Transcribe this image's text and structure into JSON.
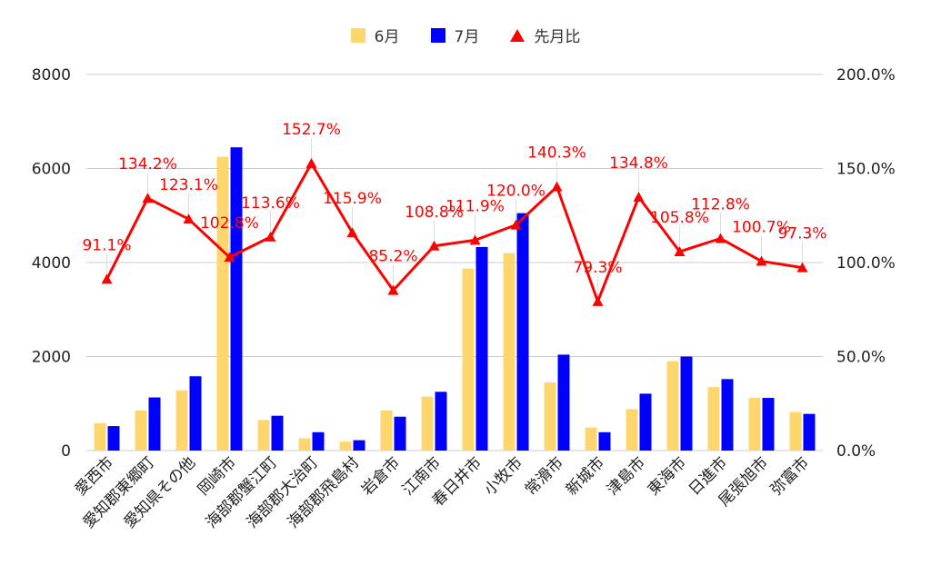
{
  "chart_data": {
    "type": "bar",
    "categories": [
      "愛西市",
      "愛知郡東郷町",
      "愛知県その他",
      "岡崎市",
      "海部郡蟹江町",
      "海部郡大治町",
      "海部郡飛島村",
      "岩倉市",
      "江南市",
      "春日井市",
      "小牧市",
      "常滑市",
      "新城市",
      "津島市",
      "東海市",
      "日進市",
      "尾張旭市",
      "弥富市"
    ],
    "series": [
      {
        "name": "6月",
        "color": "#FDD76E",
        "axis": "left",
        "values": [
          580,
          850,
          1280,
          6250,
          650,
          260,
          190,
          850,
          1150,
          3870,
          4200,
          1450,
          490,
          880,
          1900,
          1350,
          1120,
          820
        ]
      },
      {
        "name": "7月",
        "color": "#0000FF",
        "axis": "left",
        "values": [
          520,
          1130,
          1580,
          6450,
          740,
          390,
          220,
          720,
          1250,
          4330,
          5050,
          2040,
          390,
          1210,
          2000,
          1520,
          1120,
          780
        ]
      },
      {
        "name": "先月比",
        "color": "#FF0000",
        "axis": "right",
        "type": "line",
        "values": [
          91.1,
          134.2,
          123.1,
          102.8,
          113.6,
          152.7,
          115.9,
          85.2,
          108.8,
          111.9,
          120.0,
          140.3,
          79.3,
          134.8,
          105.8,
          112.8,
          100.7,
          97.3
        ],
        "labels": [
          "91.1%",
          "134.2%",
          "123.1%",
          "102.8%",
          "113.6%",
          "152.7%",
          "115.9%",
          "85.2%",
          "108.8%",
          "111.9%",
          "120.0%",
          "140.3%",
          "79.3%",
          "134.8%",
          "105.8%",
          "112.8%",
          "100.7%",
          "97.3%"
        ]
      }
    ],
    "y_left": {
      "ylim": [
        0,
        8000
      ],
      "ticks": [
        "0",
        "2000",
        "4000",
        "6000",
        "8000"
      ]
    },
    "y_right": {
      "ylim": [
        0,
        200
      ],
      "ticks": [
        "0.0%",
        "50.0%",
        "100.0%",
        "150.0%",
        "200.0%"
      ]
    },
    "grid": true,
    "legend_position": "top-center",
    "gridline_color": "#CCCCCC",
    "axis_text_color": "#222222"
  }
}
